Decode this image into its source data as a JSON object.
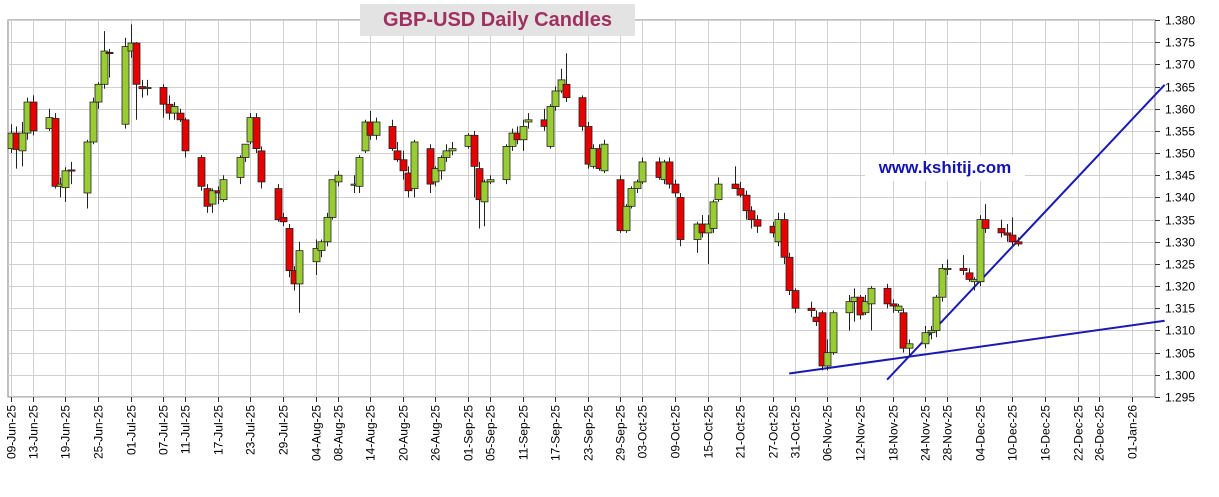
{
  "chart_data": {
    "type": "candlestick",
    "title": "GBP-USD Daily Candles",
    "annotations": [
      "www.kshitij.com"
    ],
    "y_ticks": [
      "1.380",
      "1.375",
      "1.370",
      "1.365",
      "1.360",
      "1.355",
      "1.350",
      "1.345",
      "1.340",
      "1.335",
      "1.330",
      "1.325",
      "1.320",
      "1.315",
      "1.310",
      "1.305",
      "1.300",
      "1.295"
    ],
    "ylim": [
      1.295,
      1.38
    ],
    "grid": true,
    "x_tick_labels": [
      "09-Jun-25",
      "13-Jun-25",
      "19-Jun-25",
      "25-Jun-25",
      "01-Jul-25",
      "07-Jul-25",
      "11-Jul-25",
      "17-Jul-25",
      "23-Jul-25",
      "29-Jul-25",
      "04-Aug-25",
      "08-Aug-25",
      "14-Aug-25",
      "20-Aug-25",
      "26-Aug-25",
      "01-Sep-25",
      "05-Sep-25",
      "11-Sep-25",
      "17-Sep-25",
      "23-Sep-25",
      "29-Sep-25",
      "03-Oct-25",
      "09-Oct-25",
      "15-Oct-25",
      "21-Oct-25",
      "27-Oct-25",
      "31-Oct-25",
      "06-Nov-25",
      "12-Nov-25",
      "18-Nov-25",
      "24-Nov-25",
      "28-Nov-25",
      "04-Dec-25",
      "10-Dec-25",
      "16-Dec-25",
      "22-Dec-25",
      "26-Dec-25",
      "01-Jan-26"
    ],
    "colors": {
      "up": "#99cc33",
      "down": "#e60000",
      "trendline": "#1a1ab3",
      "grid": "#d0d0d0"
    },
    "trendlines": [
      {
        "start": [
          "30-Oct-25",
          1.3003
        ],
        "end": [
          "07-Jan-26",
          1.3122
        ]
      },
      {
        "start": [
          "17-Nov-25",
          1.2989
        ],
        "end": [
          "07-Jan-26",
          1.3654
        ]
      }
    ],
    "candles": [
      {
        "date": "09-Jun-25",
        "o": 1.351,
        "h": 1.3565,
        "l": 1.35,
        "c": 1.3545
      },
      {
        "date": "10-Jun-25",
        "o": 1.3545,
        "h": 1.356,
        "l": 1.3465,
        "c": 1.3508
      },
      {
        "date": "11-Jun-25",
        "o": 1.3505,
        "h": 1.357,
        "l": 1.347,
        "c": 1.3545
      },
      {
        "date": "12-Jun-25",
        "o": 1.3545,
        "h": 1.3625,
        "l": 1.353,
        "c": 1.3615
      },
      {
        "date": "13-Jun-25",
        "o": 1.3615,
        "h": 1.363,
        "l": 1.354,
        "c": 1.355
      },
      {
        "date": "16-Jun-25",
        "o": 1.3555,
        "h": 1.36,
        "l": 1.355,
        "c": 1.358
      },
      {
        "date": "17-Jun-25",
        "o": 1.3578,
        "h": 1.359,
        "l": 1.342,
        "c": 1.3425
      },
      {
        "date": "18-Jun-25",
        "o": 1.3425,
        "h": 1.3445,
        "l": 1.34,
        "c": 1.343
      },
      {
        "date": "19-Jun-25",
        "o": 1.3422,
        "h": 1.3468,
        "l": 1.339,
        "c": 1.346
      },
      {
        "date": "20-Jun-25",
        "o": 1.3462,
        "h": 1.348,
        "l": 1.343,
        "c": 1.346
      },
      {
        "date": "23-Jun-25",
        "o": 1.341,
        "h": 1.353,
        "l": 1.3375,
        "c": 1.3525
      },
      {
        "date": "24-Jun-25",
        "o": 1.3525,
        "h": 1.3625,
        "l": 1.352,
        "c": 1.3615
      },
      {
        "date": "25-Jun-25",
        "o": 1.3615,
        "h": 1.366,
        "l": 1.36,
        "c": 1.3655
      },
      {
        "date": "26-Jun-25",
        "o": 1.3655,
        "h": 1.3775,
        "l": 1.3645,
        "c": 1.373
      },
      {
        "date": "27-Jun-25",
        "o": 1.3727,
        "h": 1.3735,
        "l": 1.367,
        "c": 1.3725
      },
      {
        "date": "30-Jun-25",
        "o": 1.3565,
        "h": 1.376,
        "l": 1.3555,
        "c": 1.374
      },
      {
        "date": "01-Jul-25",
        "o": 1.373,
        "h": 1.379,
        "l": 1.3715,
        "c": 1.3748
      },
      {
        "date": "02-Jul-25",
        "o": 1.3748,
        "h": 1.375,
        "l": 1.3575,
        "c": 1.3655
      },
      {
        "date": "03-Jul-25",
        "o": 1.365,
        "h": 1.3665,
        "l": 1.3625,
        "c": 1.3645
      },
      {
        "date": "04-Jul-25",
        "o": 1.3648,
        "h": 1.3665,
        "l": 1.363,
        "c": 1.3648
      },
      {
        "date": "07-Jul-25",
        "o": 1.3648,
        "h": 1.3655,
        "l": 1.358,
        "c": 1.361
      },
      {
        "date": "08-Jul-25",
        "o": 1.361,
        "h": 1.363,
        "l": 1.3575,
        "c": 1.359
      },
      {
        "date": "09-Jul-25",
        "o": 1.359,
        "h": 1.3615,
        "l": 1.3575,
        "c": 1.3605
      },
      {
        "date": "10-Jul-25",
        "o": 1.359,
        "h": 1.36,
        "l": 1.357,
        "c": 1.3575
      },
      {
        "date": "11-Jul-25",
        "o": 1.3575,
        "h": 1.358,
        "l": 1.349,
        "c": 1.3505
      },
      {
        "date": "14-Jul-25",
        "o": 1.349,
        "h": 1.3495,
        "l": 1.3415,
        "c": 1.3425
      },
      {
        "date": "15-Jul-25",
        "o": 1.342,
        "h": 1.343,
        "l": 1.3365,
        "c": 1.338
      },
      {
        "date": "16-Jul-25",
        "o": 1.3385,
        "h": 1.342,
        "l": 1.3365,
        "c": 1.3415
      },
      {
        "date": "17-Jul-25",
        "o": 1.3415,
        "h": 1.3425,
        "l": 1.3385,
        "c": 1.341
      },
      {
        "date": "18-Jul-25",
        "o": 1.3395,
        "h": 1.345,
        "l": 1.339,
        "c": 1.344
      },
      {
        "date": "21-Jul-25",
        "o": 1.3445,
        "h": 1.3495,
        "l": 1.343,
        "c": 1.349
      },
      {
        "date": "22-Jul-25",
        "o": 1.349,
        "h": 1.352,
        "l": 1.348,
        "c": 1.352
      },
      {
        "date": "23-Jul-25",
        "o": 1.3525,
        "h": 1.359,
        "l": 1.352,
        "c": 1.358
      },
      {
        "date": "24-Jul-25",
        "o": 1.358,
        "h": 1.359,
        "l": 1.35,
        "c": 1.351
      },
      {
        "date": "25-Jul-25",
        "o": 1.3505,
        "h": 1.3515,
        "l": 1.342,
        "c": 1.3435
      },
      {
        "date": "28-Jul-25",
        "o": 1.342,
        "h": 1.343,
        "l": 1.3345,
        "c": 1.335
      },
      {
        "date": "29-Jul-25",
        "o": 1.3355,
        "h": 1.3365,
        "l": 1.3335,
        "c": 1.3345
      },
      {
        "date": "30-Jul-25",
        "o": 1.333,
        "h": 1.334,
        "l": 1.322,
        "c": 1.3235
      },
      {
        "date": "31-Jul-25",
        "o": 1.3235,
        "h": 1.3245,
        "l": 1.319,
        "c": 1.3205
      },
      {
        "date": "01-Aug-25",
        "o": 1.3205,
        "h": 1.33,
        "l": 1.314,
        "c": 1.328
      },
      {
        "date": "04-Aug-25",
        "o": 1.3255,
        "h": 1.3305,
        "l": 1.3225,
        "c": 1.3285
      },
      {
        "date": "05-Aug-25",
        "o": 1.328,
        "h": 1.3305,
        "l": 1.3265,
        "c": 1.33
      },
      {
        "date": "06-Aug-25",
        "o": 1.33,
        "h": 1.3365,
        "l": 1.329,
        "c": 1.3355
      },
      {
        "date": "07-Aug-25",
        "o": 1.3355,
        "h": 1.344,
        "l": 1.335,
        "c": 1.344
      },
      {
        "date": "08-Aug-25",
        "o": 1.3435,
        "h": 1.346,
        "l": 1.3425,
        "c": 1.345
      },
      {
        "date": "11-Aug-25",
        "o": 1.343,
        "h": 1.345,
        "l": 1.341,
        "c": 1.343
      },
      {
        "date": "12-Aug-25",
        "o": 1.3425,
        "h": 1.3495,
        "l": 1.341,
        "c": 1.349
      },
      {
        "date": "13-Aug-25",
        "o": 1.3505,
        "h": 1.3575,
        "l": 1.35,
        "c": 1.357
      },
      {
        "date": "14-Aug-25",
        "o": 1.357,
        "h": 1.3595,
        "l": 1.353,
        "c": 1.354
      },
      {
        "date": "15-Aug-25",
        "o": 1.354,
        "h": 1.358,
        "l": 1.353,
        "c": 1.357
      },
      {
        "date": "18-Aug-25",
        "o": 1.356,
        "h": 1.3575,
        "l": 1.3505,
        "c": 1.351
      },
      {
        "date": "19-Aug-25",
        "o": 1.3505,
        "h": 1.3525,
        "l": 1.348,
        "c": 1.3485
      },
      {
        "date": "20-Aug-25",
        "o": 1.3485,
        "h": 1.3505,
        "l": 1.344,
        "c": 1.346
      },
      {
        "date": "21-Aug-25",
        "o": 1.3455,
        "h": 1.347,
        "l": 1.34,
        "c": 1.3415
      },
      {
        "date": "22-Aug-25",
        "o": 1.342,
        "h": 1.353,
        "l": 1.34,
        "c": 1.3525
      },
      {
        "date": "25-Aug-25",
        "o": 1.351,
        "h": 1.352,
        "l": 1.341,
        "c": 1.343
      },
      {
        "date": "26-Aug-25",
        "o": 1.3435,
        "h": 1.347,
        "l": 1.3425,
        "c": 1.3465
      },
      {
        "date": "27-Aug-25",
        "o": 1.346,
        "h": 1.3495,
        "l": 1.344,
        "c": 1.349
      },
      {
        "date": "28-Aug-25",
        "o": 1.349,
        "h": 1.352,
        "l": 1.348,
        "c": 1.3505
      },
      {
        "date": "29-Aug-25",
        "o": 1.3505,
        "h": 1.3525,
        "l": 1.3495,
        "c": 1.351
      },
      {
        "date": "01-Sep-25",
        "o": 1.3515,
        "h": 1.3545,
        "l": 1.351,
        "c": 1.354
      },
      {
        "date": "02-Sep-25",
        "o": 1.354,
        "h": 1.355,
        "l": 1.34,
        "c": 1.347
      },
      {
        "date": "03-Sep-25",
        "o": 1.3465,
        "h": 1.348,
        "l": 1.333,
        "c": 1.3395
      },
      {
        "date": "04-Sep-25",
        "o": 1.339,
        "h": 1.344,
        "l": 1.3335,
        "c": 1.3435
      },
      {
        "date": "05-Sep-25",
        "o": 1.3435,
        "h": 1.345,
        "l": 1.343,
        "c": 1.344
      },
      {
        "date": "08-Sep-25",
        "o": 1.344,
        "h": 1.352,
        "l": 1.343,
        "c": 1.3515
      },
      {
        "date": "09-Sep-25",
        "o": 1.3515,
        "h": 1.3555,
        "l": 1.3505,
        "c": 1.3545
      },
      {
        "date": "10-Sep-25",
        "o": 1.3545,
        "h": 1.356,
        "l": 1.352,
        "c": 1.353
      },
      {
        "date": "11-Sep-25",
        "o": 1.353,
        "h": 1.3575,
        "l": 1.3505,
        "c": 1.356
      },
      {
        "date": "12-Sep-25",
        "o": 1.357,
        "h": 1.359,
        "l": 1.3555,
        "c": 1.3575
      },
      {
        "date": "15-Sep-25",
        "o": 1.3575,
        "h": 1.36,
        "l": 1.355,
        "c": 1.356
      },
      {
        "date": "16-Sep-25",
        "o": 1.3515,
        "h": 1.361,
        "l": 1.351,
        "c": 1.3605
      },
      {
        "date": "17-Sep-25",
        "o": 1.3605,
        "h": 1.365,
        "l": 1.3595,
        "c": 1.364
      },
      {
        "date": "18-Sep-25",
        "o": 1.364,
        "h": 1.369,
        "l": 1.3635,
        "c": 1.3665
      },
      {
        "date": "19-Sep-25",
        "o": 1.3655,
        "h": 1.3725,
        "l": 1.3615,
        "c": 1.3625
      },
      {
        "date": "22-Sep-25",
        "o": 1.3625,
        "h": 1.363,
        "l": 1.355,
        "c": 1.356
      },
      {
        "date": "23-Sep-25",
        "o": 1.356,
        "h": 1.357,
        "l": 1.3465,
        "c": 1.3475
      },
      {
        "date": "24-Sep-25",
        "o": 1.347,
        "h": 1.352,
        "l": 1.3465,
        "c": 1.351
      },
      {
        "date": "25-Sep-25",
        "o": 1.351,
        "h": 1.352,
        "l": 1.346,
        "c": 1.3465
      },
      {
        "date": "26-Sep-25",
        "o": 1.346,
        "h": 1.353,
        "l": 1.3455,
        "c": 1.352
      },
      {
        "date": "29-Sep-25",
        "o": 1.344,
        "h": 1.345,
        "l": 1.332,
        "c": 1.3325
      },
      {
        "date": "30-Sep-25",
        "o": 1.3325,
        "h": 1.3385,
        "l": 1.332,
        "c": 1.338
      },
      {
        "date": "01-Oct-25",
        "o": 1.338,
        "h": 1.3425,
        "l": 1.3375,
        "c": 1.342
      },
      {
        "date": "02-Oct-25",
        "o": 1.342,
        "h": 1.344,
        "l": 1.341,
        "c": 1.3435
      },
      {
        "date": "03-Oct-25",
        "o": 1.3435,
        "h": 1.349,
        "l": 1.343,
        "c": 1.348
      },
      {
        "date": "06-Oct-25",
        "o": 1.348,
        "h": 1.349,
        "l": 1.344,
        "c": 1.3445
      },
      {
        "date": "07-Oct-25",
        "o": 1.344,
        "h": 1.3485,
        "l": 1.343,
        "c": 1.348
      },
      {
        "date": "08-Oct-25",
        "o": 1.348,
        "h": 1.349,
        "l": 1.342,
        "c": 1.343
      },
      {
        "date": "09-Oct-25",
        "o": 1.343,
        "h": 1.344,
        "l": 1.34,
        "c": 1.341
      },
      {
        "date": "10-Oct-25",
        "o": 1.34,
        "h": 1.341,
        "l": 1.329,
        "c": 1.3305
      },
      {
        "date": "13-Oct-25",
        "o": 1.3305,
        "h": 1.3345,
        "l": 1.3275,
        "c": 1.334
      },
      {
        "date": "14-Oct-25",
        "o": 1.334,
        "h": 1.336,
        "l": 1.331,
        "c": 1.332
      },
      {
        "date": "15-Oct-25",
        "o": 1.332,
        "h": 1.336,
        "l": 1.325,
        "c": 1.334
      },
      {
        "date": "16-Oct-25",
        "o": 1.333,
        "h": 1.3395,
        "l": 1.332,
        "c": 1.339
      },
      {
        "date": "17-Oct-25",
        "o": 1.3395,
        "h": 1.3445,
        "l": 1.339,
        "c": 1.343
      },
      {
        "date": "20-Oct-25",
        "o": 1.343,
        "h": 1.347,
        "l": 1.342,
        "c": 1.342
      },
      {
        "date": "21-Oct-25",
        "o": 1.342,
        "h": 1.3435,
        "l": 1.34,
        "c": 1.3405
      },
      {
        "date": "22-Oct-25",
        "o": 1.3405,
        "h": 1.3415,
        "l": 1.335,
        "c": 1.337
      },
      {
        "date": "23-Oct-25",
        "o": 1.337,
        "h": 1.338,
        "l": 1.333,
        "c": 1.335
      },
      {
        "date": "24-Oct-25",
        "o": 1.335,
        "h": 1.336,
        "l": 1.332,
        "c": 1.3335
      },
      {
        "date": "27-Oct-25",
        "o": 1.3335,
        "h": 1.3345,
        "l": 1.331,
        "c": 1.332
      },
      {
        "date": "28-Oct-25",
        "o": 1.33,
        "h": 1.3365,
        "l": 1.329,
        "c": 1.335
      },
      {
        "date": "29-Oct-25",
        "o": 1.335,
        "h": 1.3365,
        "l": 1.325,
        "c": 1.3265
      },
      {
        "date": "30-Oct-25",
        "o": 1.3265,
        "h": 1.3275,
        "l": 1.318,
        "c": 1.319
      },
      {
        "date": "31-Oct-25",
        "o": 1.319,
        "h": 1.3195,
        "l": 1.314,
        "c": 1.315
      },
      {
        "date": "03-Nov-25",
        "o": 1.315,
        "h": 1.3165,
        "l": 1.313,
        "c": 1.3145
      },
      {
        "date": "04-Nov-25",
        "o": 1.313,
        "h": 1.3145,
        "l": 1.311,
        "c": 1.312
      },
      {
        "date": "05-Nov-25",
        "o": 1.314,
        "h": 1.3145,
        "l": 1.301,
        "c": 1.302
      },
      {
        "date": "06-Nov-25",
        "o": 1.302,
        "h": 1.308,
        "l": 1.301,
        "c": 1.305
      },
      {
        "date": "07-Nov-25",
        "o": 1.305,
        "h": 1.3145,
        "l": 1.3045,
        "c": 1.314
      },
      {
        "date": "10-Nov-25",
        "o": 1.314,
        "h": 1.318,
        "l": 1.31,
        "c": 1.3165
      },
      {
        "date": "11-Nov-25",
        "o": 1.3165,
        "h": 1.3195,
        "l": 1.312,
        "c": 1.3175
      },
      {
        "date": "12-Nov-25",
        "o": 1.3175,
        "h": 1.318,
        "l": 1.3125,
        "c": 1.3135
      },
      {
        "date": "13-Nov-25",
        "o": 1.314,
        "h": 1.318,
        "l": 1.3135,
        "c": 1.3165
      },
      {
        "date": "14-Nov-25",
        "o": 1.316,
        "h": 1.32,
        "l": 1.31,
        "c": 1.3195
      },
      {
        "date": "17-Nov-25",
        "o": 1.3195,
        "h": 1.3205,
        "l": 1.315,
        "c": 1.316
      },
      {
        "date": "18-Nov-25",
        "o": 1.316,
        "h": 1.317,
        "l": 1.314,
        "c": 1.3155
      },
      {
        "date": "19-Nov-25",
        "o": 1.3145,
        "h": 1.316,
        "l": 1.314,
        "c": 1.3155
      },
      {
        "date": "20-Nov-25",
        "o": 1.314,
        "h": 1.315,
        "l": 1.305,
        "c": 1.306
      },
      {
        "date": "21-Nov-25",
        "o": 1.306,
        "h": 1.308,
        "l": 1.304,
        "c": 1.307
      },
      {
        "date": "24-Nov-25",
        "o": 1.307,
        "h": 1.311,
        "l": 1.306,
        "c": 1.3095
      },
      {
        "date": "25-Nov-25",
        "o": 1.3095,
        "h": 1.311,
        "l": 1.308,
        "c": 1.31
      },
      {
        "date": "26-Nov-25",
        "o": 1.31,
        "h": 1.318,
        "l": 1.3085,
        "c": 1.3175
      },
      {
        "date": "27-Nov-25",
        "o": 1.3175,
        "h": 1.325,
        "l": 1.3165,
        "c": 1.324
      },
      {
        "date": "28-Nov-25",
        "o": 1.324,
        "h": 1.326,
        "l": 1.3225,
        "c": 1.324
      },
      {
        "date": "01-Dec-25",
        "o": 1.324,
        "h": 1.327,
        "l": 1.3225,
        "c": 1.3235
      },
      {
        "date": "02-Dec-25",
        "o": 1.323,
        "h": 1.324,
        "l": 1.321,
        "c": 1.3215
      },
      {
        "date": "03-Dec-25",
        "o": 1.321,
        "h": 1.322,
        "l": 1.319,
        "c": 1.3215
      },
      {
        "date": "04-Dec-25",
        "o": 1.321,
        "h": 1.336,
        "l": 1.32,
        "c": 1.335
      },
      {
        "date": "05-Dec-25",
        "o": 1.335,
        "h": 1.3385,
        "l": 1.332,
        "c": 1.333
      },
      {
        "date": "08-Dec-25",
        "o": 1.333,
        "h": 1.335,
        "l": 1.331,
        "c": 1.332
      },
      {
        "date": "09-Dec-25",
        "o": 1.332,
        "h": 1.334,
        "l": 1.33,
        "c": 1.3315
      },
      {
        "date": "10-Dec-25",
        "o": 1.3315,
        "h": 1.3355,
        "l": 1.329,
        "c": 1.33
      },
      {
        "date": "11-Dec-25",
        "o": 1.33,
        "h": 1.331,
        "l": 1.329,
        "c": 1.3295
      }
    ]
  }
}
